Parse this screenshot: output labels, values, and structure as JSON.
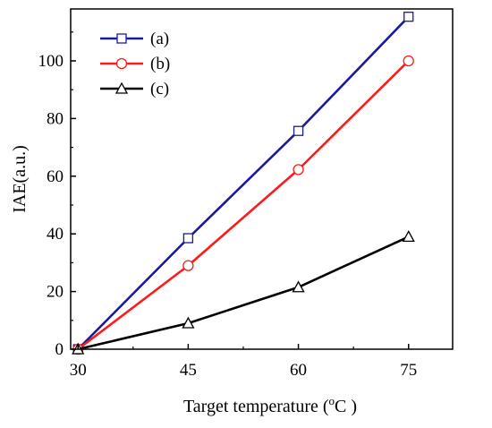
{
  "chart_data": {
    "type": "line",
    "title": "",
    "xlabel": "Target temperature (",
    "xlabel_unit_sup": "o",
    "xlabel_unit": "C )",
    "ylabel": "IAE(a.u.)",
    "xlim": [
      29,
      81
    ],
    "ylim": [
      0,
      118
    ],
    "x_ticks": [
      "30",
      "45",
      "60",
      "75"
    ],
    "y_ticks": [
      "0",
      "20",
      "40",
      "60",
      "80",
      "100"
    ],
    "x": [
      30,
      45,
      60,
      75
    ],
    "series": [
      {
        "name": "(a)",
        "color": "#1a1a9c",
        "marker": "square",
        "values": [
          0,
          38.5,
          75.7,
          115.3
        ]
      },
      {
        "name": "(b)",
        "color": "#ff1a1a",
        "marker": "circle",
        "values": [
          0,
          29.0,
          62.3,
          100.0
        ]
      },
      {
        "name": "(c)",
        "color": "#000000",
        "marker": "triangle",
        "values": [
          0,
          9.0,
          21.5,
          39.0
        ]
      }
    ],
    "grid": false,
    "legend_position": "top-left"
  }
}
